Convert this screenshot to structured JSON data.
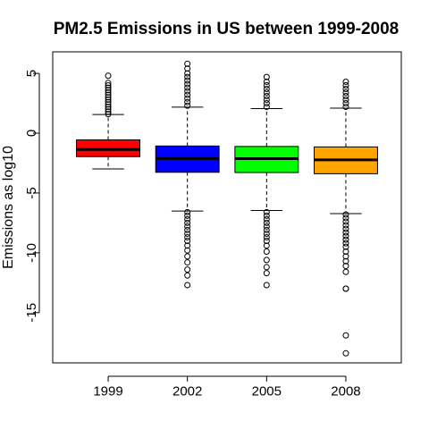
{
  "chart_data": {
    "type": "boxplot",
    "title": "PM2.5 Emissions in US between 1999-2008",
    "xlabel": "",
    "ylabel": "Emissions as log10",
    "ylim": [
      -19.2,
      6.8
    ],
    "yticks": [
      5,
      0,
      -5,
      -10,
      -15
    ],
    "ytick_labels": [
      "5",
      "0",
      "-5",
      "-10",
      "-15"
    ],
    "categories": [
      "1999",
      "2002",
      "2005",
      "2008"
    ],
    "colors": [
      "#ff0000",
      "#0000ff",
      "#00ff00",
      "#ffa500"
    ],
    "grid": false,
    "series": [
      {
        "whisker_low": -2.99,
        "q1": -1.96,
        "median": -1.36,
        "q3": -0.56,
        "whisker_high": 1.56,
        "outliers_high": [
          1.6,
          1.8,
          2.0,
          2.2,
          2.4,
          2.6,
          2.8,
          3.0,
          3.2,
          3.4,
          3.6,
          3.8,
          4.0,
          4.2,
          4.8
        ],
        "outliers_low": []
      },
      {
        "whisker_low": -6.51,
        "q1": -3.27,
        "median": -2.12,
        "q3": -1.07,
        "whisker_high": 2.18,
        "outliers_high": [
          2.3,
          2.6,
          2.9,
          3.2,
          3.5,
          3.8,
          4.1,
          4.4,
          4.7,
          5.0,
          5.4,
          5.8
        ],
        "outliers_low": [
          -6.6,
          -6.9,
          -7.2,
          -7.5,
          -7.8,
          -8.1,
          -8.4,
          -8.7,
          -9.0,
          -9.4,
          -9.8,
          -10.3,
          -10.8,
          -11.4,
          -11.9,
          -12.7
        ]
      },
      {
        "whisker_low": -6.46,
        "q1": -3.29,
        "median": -2.13,
        "q3": -1.11,
        "whisker_high": 2.06,
        "outliers_high": [
          2.2,
          2.5,
          2.8,
          3.1,
          3.4,
          3.7,
          4.0,
          4.3,
          4.7
        ],
        "outliers_low": [
          -6.6,
          -6.9,
          -7.2,
          -7.5,
          -7.8,
          -8.1,
          -8.4,
          -8.7,
          -9.0,
          -9.4,
          -9.9,
          -10.6,
          -11.2,
          -11.7,
          -12.7
        ]
      },
      {
        "whisker_low": -6.72,
        "q1": -3.39,
        "median": -2.23,
        "q3": -1.15,
        "whisker_high": 2.09,
        "outliers_high": [
          2.2,
          2.5,
          2.8,
          3.1,
          3.4,
          3.7,
          4.0,
          4.3
        ],
        "outliers_low": [
          -6.8,
          -7.1,
          -7.4,
          -7.7,
          -8.0,
          -8.3,
          -8.6,
          -8.9,
          -9.2,
          -9.5,
          -9.9,
          -10.3,
          -10.7,
          -11.1,
          -11.6,
          -13.0,
          -13.0,
          -16.9,
          -18.4
        ]
      }
    ]
  }
}
